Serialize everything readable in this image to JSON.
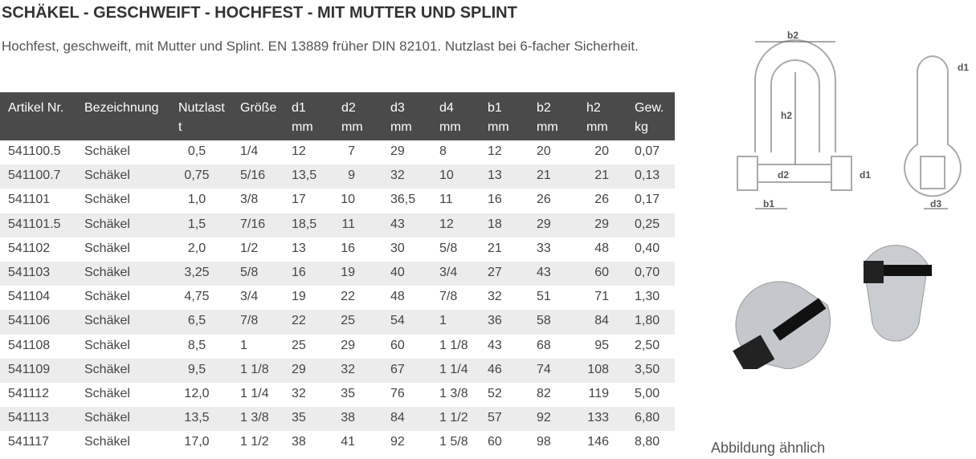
{
  "header": {
    "title": "SCHÄKEL - GESCHWEIFT - HOCHFEST - MIT MUTTER UND SPLINT",
    "description": "Hochfest, geschweift, mit Mutter und Splint. EN 13889 früher DIN 82101. Nutzlast bei 6-facher Sicherheit."
  },
  "table": {
    "columns": [
      [
        "Artikel Nr."
      ],
      [
        "Bezeichnung"
      ],
      [
        "Nutzlast",
        "t"
      ],
      [
        "Größe"
      ],
      [
        "d1",
        "mm"
      ],
      [
        "d2",
        "mm"
      ],
      [
        "d3",
        "mm"
      ],
      [
        "d4",
        "mm"
      ],
      [
        "b1",
        "mm"
      ],
      [
        "b2",
        "mm"
      ],
      [
        "h2",
        "mm"
      ],
      [
        "Gew.",
        "kg"
      ]
    ],
    "rows": [
      [
        "541100.5",
        "Schäkel",
        "0,5",
        "1/4",
        "12",
        "7",
        "29",
        "8",
        "12",
        "20",
        "20",
        "0,07"
      ],
      [
        "541100.7",
        "Schäkel",
        "0,75",
        "5/16",
        "13,5",
        "9",
        "32",
        "10",
        "13",
        "21",
        "21",
        "0,13"
      ],
      [
        "541101",
        "Schäkel",
        "1,0",
        "3/8",
        "17",
        "10",
        "36,5",
        "11",
        "16",
        "26",
        "26",
        "0,17"
      ],
      [
        "541101.5",
        "Schäkel",
        "1,5",
        "7/16",
        "18,5",
        "11",
        "43",
        "12",
        "18",
        "29",
        "29",
        "0,25"
      ],
      [
        "541102",
        "Schäkel",
        "2,0",
        "1/2",
        "13",
        "16",
        "30",
        "5/8",
        "21",
        "33",
        "48",
        "0,40"
      ],
      [
        "541103",
        "Schäkel",
        "3,25",
        "5/8",
        "16",
        "19",
        "40",
        "3/4",
        "27",
        "43",
        "60",
        "0,70"
      ],
      [
        "541104",
        "Schäkel",
        "4,75",
        "3/4",
        "19",
        "22",
        "48",
        "7/8",
        "32",
        "51",
        "71",
        "1,30"
      ],
      [
        "541106",
        "Schäkel",
        "6,5",
        "7/8",
        "22",
        "25",
        "54",
        "1",
        "36",
        "58",
        "84",
        "1,80"
      ],
      [
        "541108",
        "Schäkel",
        "8,5",
        "1",
        "25",
        "29",
        "60",
        "1 1/8",
        "43",
        "68",
        "95",
        "2,50"
      ],
      [
        "541109",
        "Schäkel",
        "9,5",
        "1 1/8",
        "29",
        "32",
        "67",
        "1 1/4",
        "46",
        "74",
        "108",
        "3,50"
      ],
      [
        "541112",
        "Schäkel",
        "12,0",
        "1 1/4",
        "32",
        "35",
        "76",
        "1 3/8",
        "52",
        "82",
        "119",
        "5,00"
      ],
      [
        "541113",
        "Schäkel",
        "13,5",
        "1 3/8",
        "35",
        "38",
        "84",
        "1 1/2",
        "57",
        "92",
        "133",
        "6,80"
      ],
      [
        "541117",
        "Schäkel",
        "17,0",
        "1 1/2",
        "38",
        "41",
        "92",
        "1 5/8",
        "60",
        "98",
        "146",
        "8,80"
      ]
    ]
  },
  "figure": {
    "labels": [
      "b2",
      "h2",
      "d2",
      "d1",
      "b1",
      "d1",
      "d3"
    ],
    "caption": "Abbildung ähnlich"
  }
}
